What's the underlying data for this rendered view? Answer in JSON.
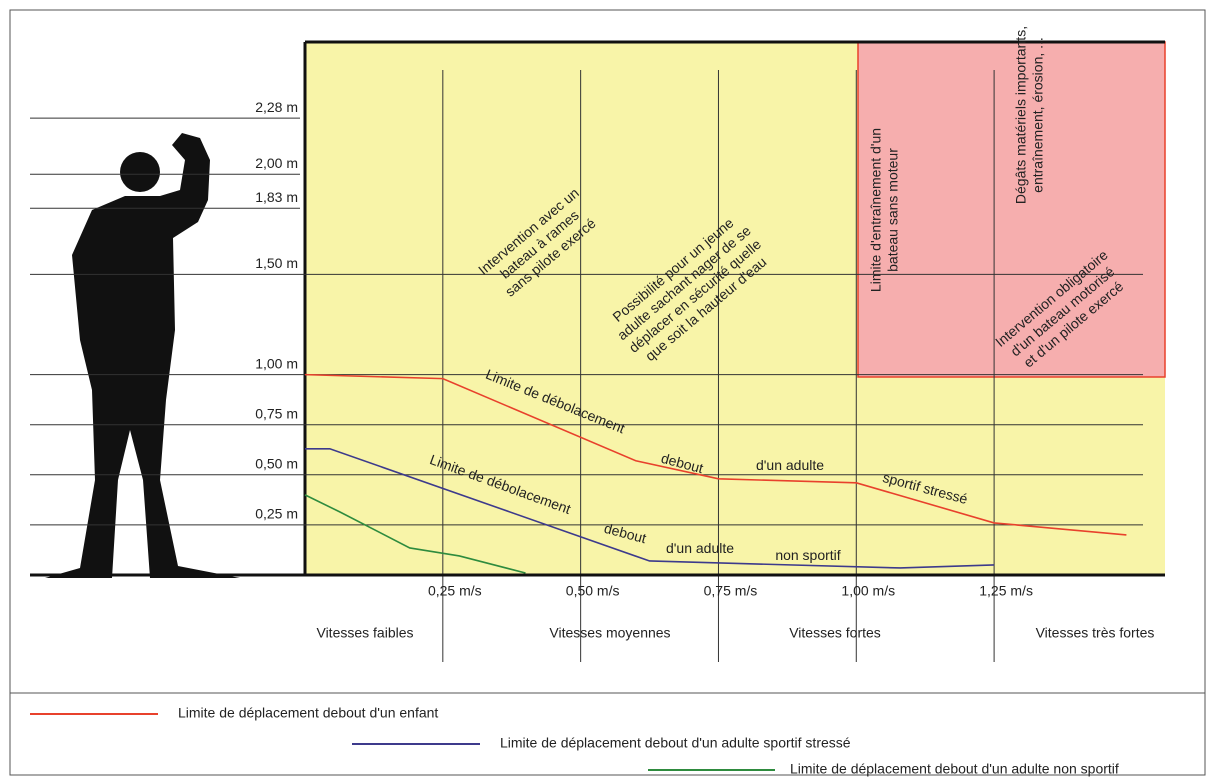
{
  "chart_data": {
    "type": "line",
    "xlim": [
      0,
      1.56
    ],
    "ylim": [
      0,
      2.66
    ],
    "xticks": [
      {
        "value": 0.25,
        "label": "0,25 m/s"
      },
      {
        "value": 0.5,
        "label": "0,50 m/s"
      },
      {
        "value": 0.75,
        "label": "0,75 m/s"
      },
      {
        "value": 1.0,
        "label": "1,00 m/s"
      },
      {
        "value": 1.25,
        "label": "1,25 m/s"
      }
    ],
    "yticks": [
      {
        "value": 0.25,
        "label": "0,25 m"
      },
      {
        "value": 0.5,
        "label": "0,50 m"
      },
      {
        "value": 0.75,
        "label": "0,75 m"
      },
      {
        "value": 1.0,
        "label": "1,00 m"
      },
      {
        "value": 1.5,
        "label": "1,50 m"
      },
      {
        "value": 1.83,
        "label": "1,83 m"
      },
      {
        "value": 2.0,
        "label": "2,00 m"
      },
      {
        "value": 2.28,
        "label": "2,28 m"
      }
    ],
    "zone_labels": [
      "Vitesses  faibles",
      "Vitesses  moyennes",
      "Vitesses  fortes",
      "Vitesses  très fortes"
    ],
    "series": [
      {
        "name": "Limite de déplacement debout d'un enfant",
        "color": "#e8412c",
        "x": [
          0,
          0.25,
          0.6,
          0.75,
          1.0,
          1.25,
          1.49
        ],
        "values": [
          1.0,
          0.98,
          0.57,
          0.48,
          0.46,
          0.26,
          0.2
        ]
      },
      {
        "name": "Limite de déplacement debout d'un adulte sportif stressé",
        "color": "#3d3a8c",
        "x": [
          0,
          0.045,
          0.625,
          1.08,
          1.25
        ],
        "values": [
          0.63,
          0.63,
          0.07,
          0.035,
          0.05
        ]
      },
      {
        "name": "Limite de déplacement debout d'un adulte non sportif",
        "color": "#2e8b3e",
        "x": [
          0,
          0.063,
          0.19,
          0.28,
          0.4
        ],
        "values": [
          0.4,
          0.315,
          0.135,
          0.095,
          0.01
        ]
      }
    ],
    "annotations": [
      [
        "Intervention avec un",
        "bateau à rames",
        "sans pilote exercé"
      ],
      [
        "Possibilité pour un jeune",
        "adulte sachant nager de se",
        "déplacer en sécurité quelle",
        "que soit la hauteur d'eau"
      ],
      [
        "Limite d'entraînement d'un",
        "bateau sans moteur"
      ],
      [
        "Dégâts matériels importants,",
        "entraînement, érosion, ..."
      ],
      [
        "Intervention obligatoire",
        "d'un bateau motorisé",
        "et d'un pilote exercé"
      ],
      [
        "Limite de débolacement"
      ],
      [
        "debout"
      ],
      [
        "d'un adulte"
      ],
      [
        "sportif stressé"
      ],
      [
        "Limite de débolacement"
      ],
      [
        "debout"
      ],
      [
        "d'un adulte"
      ],
      [
        "non sportif"
      ]
    ]
  }
}
